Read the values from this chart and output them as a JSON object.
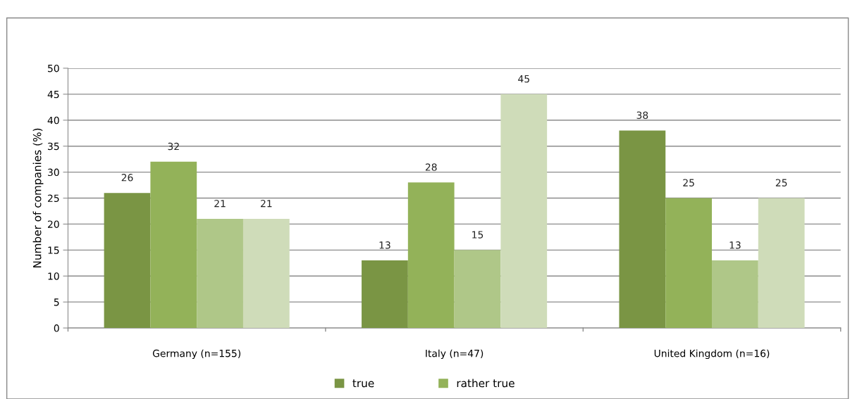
{
  "chart_data": {
    "type": "bar",
    "ylabel": "Number of companies (%)",
    "categories": [
      "Germany (n=155)",
      "Italy (n=47)",
      "United Kingdom (n=16)"
    ],
    "series": [
      {
        "name": "true",
        "color": "#7a9544",
        "values": [
          26,
          13,
          38
        ]
      },
      {
        "name": "rather true",
        "color": "#93b259",
        "values": [
          32,
          28,
          25
        ]
      },
      {
        "color": "#afc788",
        "values": [
          21,
          15,
          13
        ]
      },
      {
        "color": "#cfdcb9",
        "values": [
          21,
          45,
          25
        ]
      }
    ],
    "ylim": [
      0,
      50
    ],
    "yticks": [
      0,
      5,
      10,
      15,
      20,
      25,
      30,
      35,
      40,
      45,
      50
    ],
    "grid": "y",
    "legend": "bottom",
    "data_labels": true
  }
}
